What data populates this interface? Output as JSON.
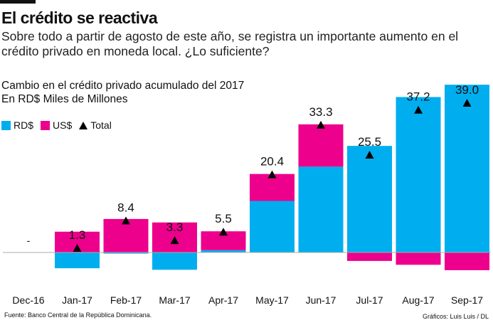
{
  "header": {
    "title": "El crédito se reactiva",
    "subtitle": "Sobre todo a partir de agosto de este año, se registra un importante aumento en el crédito privado en moneda local. ¿Lo suficiente?"
  },
  "footer": {
    "source": "Fuente: Banco Central de la República Dominicana.",
    "credit": "Gráficos: Luis Luis / DL"
  },
  "colors": {
    "rd": "#00AEEF",
    "us": "#EC008C",
    "total": "#000000"
  },
  "chart_data": {
    "type": "bar",
    "stacked": true,
    "title": "Cambio en el crédito privado acumulado del 2017",
    "subtitle": "En RD$ Miles de Millones",
    "legend_position": "top-left",
    "grid": false,
    "categories": [
      "Dec-16",
      "Jan-17",
      "Feb-17",
      "Mar-17",
      "Apr-17",
      "May-17",
      "Jun-17",
      "Jul-17",
      "Aug-17",
      "Sep-17"
    ],
    "series": [
      {
        "name": "RD$",
        "values": [
          0,
          -4.1,
          -0.3,
          -4.5,
          0.6,
          13.4,
          22.3,
          27.7,
          40.4,
          43.6
        ]
      },
      {
        "name": "US$",
        "values": [
          0,
          5.4,
          8.7,
          7.8,
          4.9,
          7.0,
          11.0,
          -2.2,
          -3.2,
          -4.6
        ]
      },
      {
        "name": "Total",
        "marker": "triangle",
        "values": [
          null,
          1.3,
          8.4,
          3.3,
          5.5,
          20.4,
          33.3,
          25.5,
          37.2,
          39.0
        ]
      }
    ],
    "data_labels": [
      "-",
      "1.3",
      "8.4",
      "3.3",
      "5.5",
      "20.4",
      "33.3",
      "25.5",
      "37.2",
      "39.0"
    ],
    "ylim": [
      -5,
      44
    ]
  }
}
